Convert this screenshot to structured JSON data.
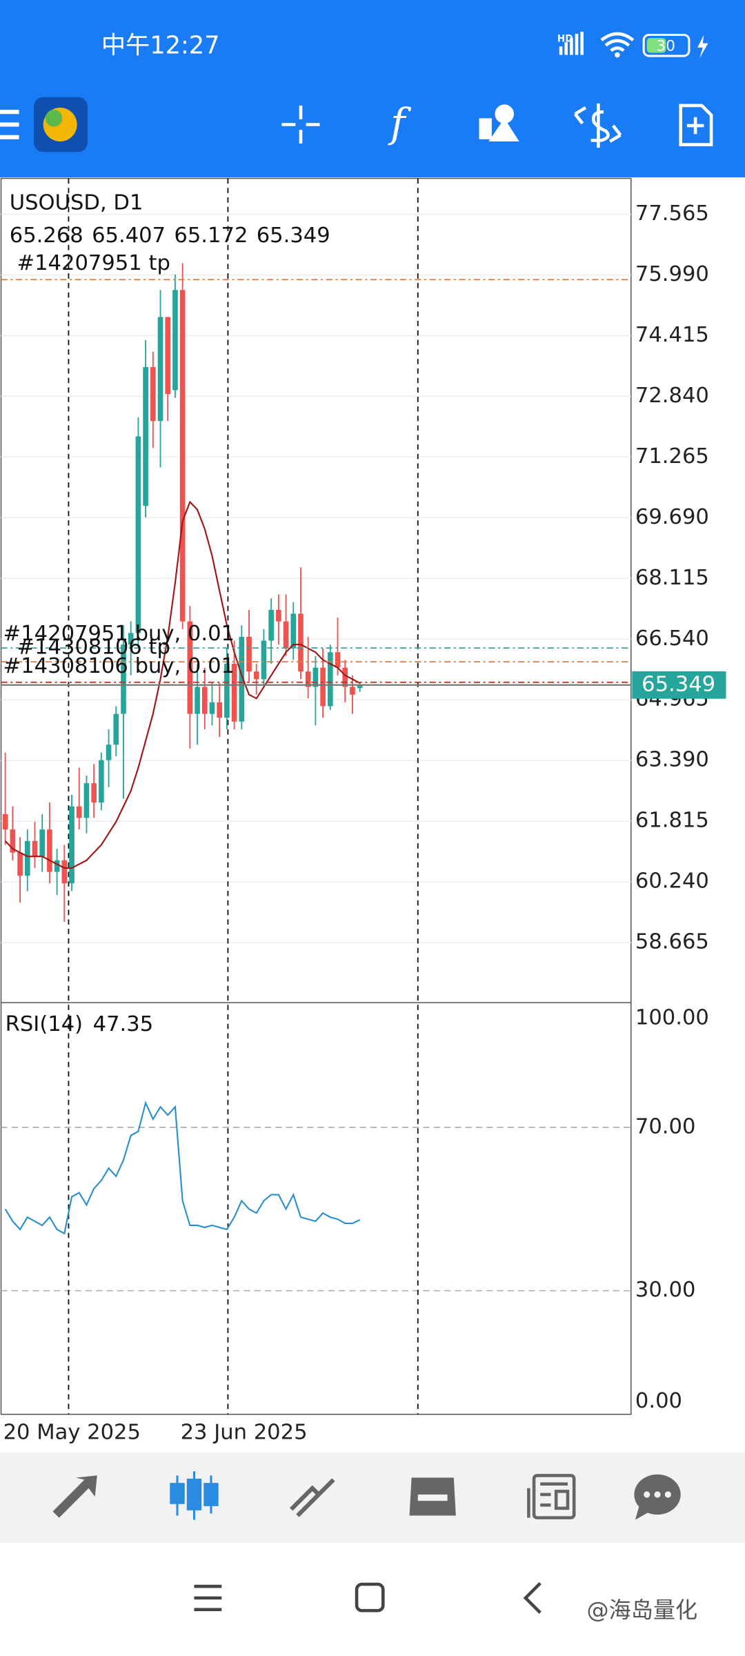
{
  "status_bar": {
    "time": "中午12:27",
    "network": "HD",
    "battery": "30"
  },
  "watermark": "@海岛量化",
  "chart_data": [
    {
      "type": "candlestick",
      "title": "USOUSD, D1",
      "ohlc": [
        65.268,
        65.407,
        65.172,
        65.349
      ],
      "categories": [
        "20 May 2025",
        null,
        null,
        null,
        null,
        null,
        null,
        null,
        null,
        null,
        null,
        null,
        null,
        null,
        null,
        null,
        null,
        null,
        null,
        null,
        null,
        null,
        null,
        null,
        "23 Jun 2025",
        null,
        null,
        null,
        null,
        null,
        null,
        null,
        null,
        null,
        null,
        null,
        null,
        null,
        null,
        null,
        null,
        null,
        null,
        null,
        null,
        null,
        null,
        null,
        null
      ],
      "open": [
        62.0,
        61.6,
        61.0,
        60.4,
        61.3,
        60.9,
        61.6,
        60.5,
        60.8,
        60.2,
        62.2,
        61.9,
        62.8,
        62.3,
        63.4,
        63.8,
        64.6,
        66.4,
        66.7,
        70.0,
        73.6,
        72.2,
        74.9,
        73.0,
        75.6,
        67.0,
        64.6,
        65.3,
        64.6,
        64.9,
        64.5,
        65.9,
        64.4,
        66.6,
        65.7,
        65.5,
        66.5,
        67.3,
        67.0,
        66.3,
        67.2,
        65.7,
        65.3,
        65.8,
        64.8,
        66.2,
        65.8,
        65.3,
        65.268
      ],
      "high": [
        63.6,
        62.2,
        61.4,
        61.6,
        61.8,
        62.0,
        62.3,
        61.1,
        61.2,
        62.5,
        63.2,
        63.0,
        63.3,
        63.6,
        64.2,
        64.8,
        66.9,
        67.0,
        72.3,
        74.3,
        74.0,
        75.6,
        74.9,
        76.0,
        76.3,
        67.4,
        65.9,
        65.8,
        65.4,
        65.4,
        66.3,
        66.5,
        66.9,
        67.3,
        65.9,
        66.8,
        67.6,
        67.7,
        67.7,
        67.5,
        68.4,
        66.6,
        66.1,
        66.3,
        66.4,
        67.1,
        66.0,
        65.6,
        65.407
      ],
      "low": [
        61.2,
        60.8,
        59.7,
        60.0,
        60.6,
        60.5,
        60.2,
        59.9,
        59.2,
        60.0,
        61.6,
        61.5,
        61.9,
        62.1,
        62.7,
        63.5,
        62.4,
        65.6,
        66.3,
        69.7,
        71.5,
        71.0,
        72.2,
        72.8,
        66.8,
        63.7,
        63.8,
        64.2,
        64.3,
        64.0,
        64.2,
        64.2,
        64.2,
        65.4,
        65.1,
        65.3,
        65.9,
        66.4,
        66.1,
        66.0,
        65.5,
        65.0,
        64.3,
        64.5,
        64.7,
        65.6,
        64.9,
        64.6,
        65.172
      ],
      "close": [
        61.6,
        61.0,
        60.4,
        61.3,
        60.9,
        61.6,
        60.5,
        60.8,
        60.2,
        62.2,
        61.9,
        62.8,
        62.3,
        63.4,
        63.8,
        64.6,
        66.4,
        66.7,
        71.8,
        73.6,
        72.2,
        74.9,
        72.9,
        75.6,
        67.0,
        64.6,
        65.3,
        64.6,
        64.9,
        64.5,
        65.9,
        64.4,
        66.6,
        65.7,
        65.5,
        66.5,
        67.3,
        67.0,
        66.3,
        67.2,
        65.7,
        65.3,
        65.8,
        64.8,
        66.2,
        65.8,
        65.3,
        65.1,
        65.349
      ],
      "up_color": "#26a69a",
      "down_color": "#ef5350",
      "ylim": [
        57.16,
        78.47
      ],
      "yticks": [
        77.565,
        {
          "value": 75.99,
          "label": "75.990"
        },
        74.415,
        {
          "value": 72.84,
          "label": "72.840"
        },
        71.265,
        {
          "value": 69.69,
          "label": "69.690"
        },
        68.115,
        {
          "value": 66.54,
          "label": "66.540"
        },
        64.965,
        {
          "value": 63.39,
          "label": "63.390"
        },
        61.815,
        {
          "value": 60.24,
          "label": "60.240"
        },
        58.665
      ],
      "grid": true,
      "last_price": 65.349,
      "last_price_color": "#26a69a",
      "ma": {
        "color": "#a01515",
        "values": [
          61.3,
          61.1,
          61.0,
          60.9,
          60.9,
          60.9,
          60.8,
          60.7,
          60.6,
          60.6,
          60.7,
          60.8,
          61.0,
          61.2,
          61.5,
          61.8,
          62.2,
          62.6,
          63.2,
          63.9,
          64.6,
          65.5,
          66.6,
          68.0,
          69.6,
          70.1,
          69.9,
          69.4,
          68.7,
          67.8,
          66.9,
          66.2,
          65.6,
          65.1,
          65.0,
          65.3,
          65.6,
          65.9,
          66.2,
          66.4,
          66.4,
          66.3,
          66.2,
          66.0,
          65.9,
          65.8,
          65.6,
          65.5,
          65.4
        ]
      },
      "orders": [
        {
          "label": "#14207951 tp",
          "price": 75.87,
          "color": "#e07b39"
        },
        {
          "label": "#14308106 tp",
          "price": 66.31,
          "color": "#3aa0a0"
        },
        {
          "label": "#14207951 buy, 0.01",
          "price": 65.95,
          "color": "#e07b39"
        },
        {
          "label": "#14308106 buy, 0.01",
          "price": 65.42,
          "color": "#c0392b"
        }
      ]
    },
    {
      "type": "line",
      "title": "RSI(14)",
      "value": 47.35,
      "color": "#2a8fd0",
      "values": [
        50,
        47,
        45,
        48,
        47,
        46,
        48,
        45,
        44,
        53,
        54,
        51,
        55,
        57,
        60,
        58,
        62,
        68,
        69,
        76,
        72,
        75,
        73,
        75,
        52,
        46,
        46,
        45.5,
        46,
        45.5,
        45,
        48,
        52,
        50,
        49,
        52,
        53.5,
        53.5,
        50,
        53.5,
        48,
        47.5,
        47,
        49,
        48,
        47.5,
        46.5,
        46.5,
        47.35
      ],
      "ylim": [
        0,
        100
      ],
      "yticks": [
        {
          "value": 100,
          "label": "100.00"
        },
        {
          "value": 70,
          "label": "70.00"
        },
        {
          "value": 30,
          "label": "30.00"
        },
        {
          "value": 0,
          "label": "0.00"
        }
      ],
      "grid": true
    }
  ]
}
